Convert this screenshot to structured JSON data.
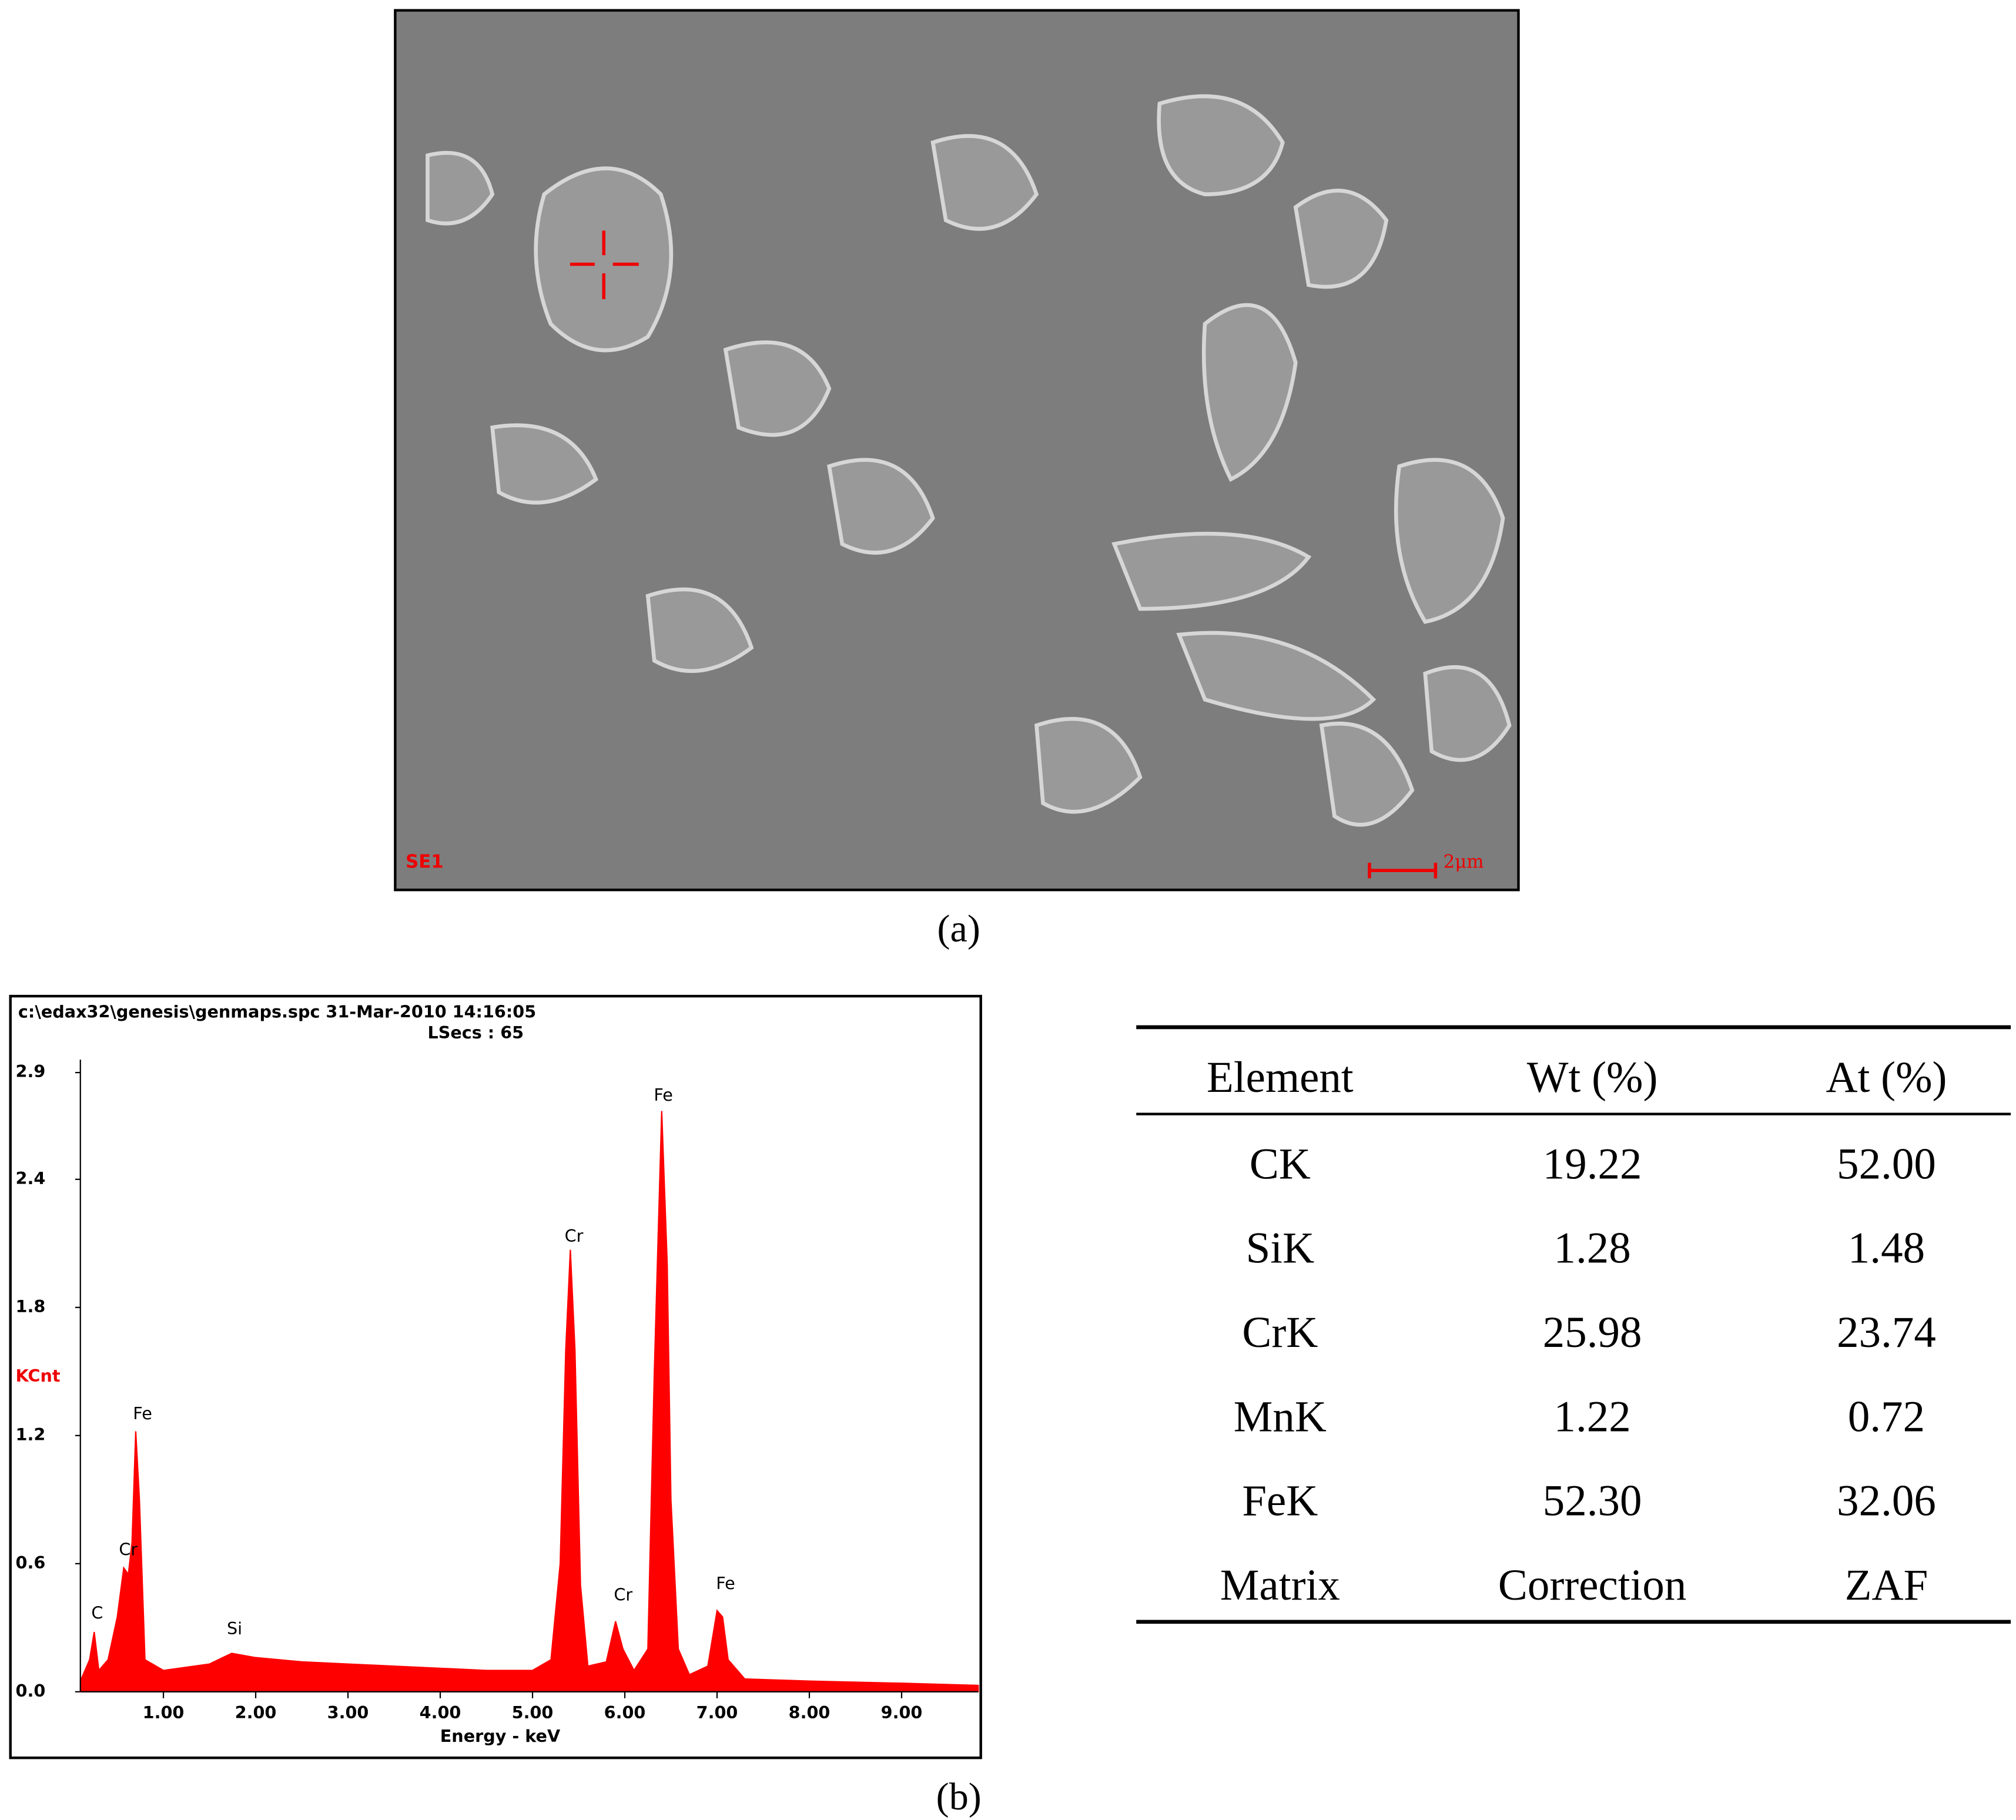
{
  "panel_a": {
    "caption": "(a)",
    "detector": "SE1",
    "scale_bar": "2μm"
  },
  "panel_b": {
    "caption": "(b)"
  },
  "chart_data": {
    "type": "area",
    "header": "c:\\edax32\\genesis\\genmaps.spc  31-Mar-2010 14:16:05",
    "subheader": "LSecs :  65",
    "xlabel": "Energy - keV",
    "ylabel": "KCnt",
    "color": "#ff0000",
    "xlim": [
      0.1,
      9.83
    ],
    "ylim": [
      0,
      2.9
    ],
    "xticks": [
      {
        "value": 1,
        "label": "1.00"
      },
      {
        "value": 2,
        "label": "2.00"
      },
      {
        "value": 3,
        "label": "3.00"
      },
      {
        "value": 4,
        "label": "4.00"
      },
      {
        "value": 5,
        "label": "5.00"
      },
      {
        "value": 6,
        "label": "6.00"
      },
      {
        "value": 7,
        "label": "7.00"
      },
      {
        "value": 8,
        "label": "8.00"
      },
      {
        "value": 9,
        "label": "9.00"
      }
    ],
    "yticks": [
      {
        "value": 0,
        "label": "0.0"
      },
      0.6,
      1.2,
      1.8,
      2.4,
      2.9
    ],
    "peak_labels": [
      "C",
      "Cr",
      "Fe",
      "Si",
      "Cr",
      "Cr",
      "Fe",
      "Fe"
    ],
    "x": [
      0.1,
      0.2,
      0.25,
      0.3,
      0.4,
      0.5,
      0.57,
      0.62,
      0.66,
      0.7,
      0.74,
      0.8,
      1.0,
      1.5,
      1.74,
      2.0,
      2.5,
      3.0,
      3.5,
      4.0,
      4.5,
      5.0,
      5.2,
      5.3,
      5.36,
      5.41,
      5.46,
      5.52,
      5.6,
      5.8,
      5.9,
      5.98,
      6.1,
      6.25,
      6.32,
      6.4,
      6.46,
      6.5,
      6.58,
      6.7,
      6.9,
      7.0,
      7.06,
      7.12,
      7.3,
      8.0,
      9.0,
      9.83
    ],
    "values": [
      0.05,
      0.15,
      0.28,
      0.1,
      0.15,
      0.35,
      0.58,
      0.55,
      0.7,
      1.22,
      0.9,
      0.15,
      0.1,
      0.13,
      0.18,
      0.16,
      0.14,
      0.13,
      0.12,
      0.11,
      0.1,
      0.1,
      0.15,
      0.6,
      1.6,
      2.07,
      1.6,
      0.5,
      0.12,
      0.14,
      0.33,
      0.2,
      0.1,
      0.2,
      1.5,
      2.72,
      2.0,
      0.9,
      0.2,
      0.08,
      0.12,
      0.38,
      0.35,
      0.15,
      0.06,
      0.05,
      0.04,
      0.03
    ]
  },
  "table": {
    "header": [
      "Element",
      "Wt (%)",
      "At (%)"
    ],
    "rows": [
      [
        "CK",
        "19.22",
        "52.00"
      ],
      [
        "SiK",
        "1.28",
        "1.48"
      ],
      [
        "CrK",
        "25.98",
        "23.74"
      ],
      [
        "MnK",
        "1.22",
        "0.72"
      ],
      [
        "FeK",
        "52.30",
        "32.06"
      ],
      [
        "Matrix",
        "Correction",
        "ZAF"
      ]
    ]
  }
}
